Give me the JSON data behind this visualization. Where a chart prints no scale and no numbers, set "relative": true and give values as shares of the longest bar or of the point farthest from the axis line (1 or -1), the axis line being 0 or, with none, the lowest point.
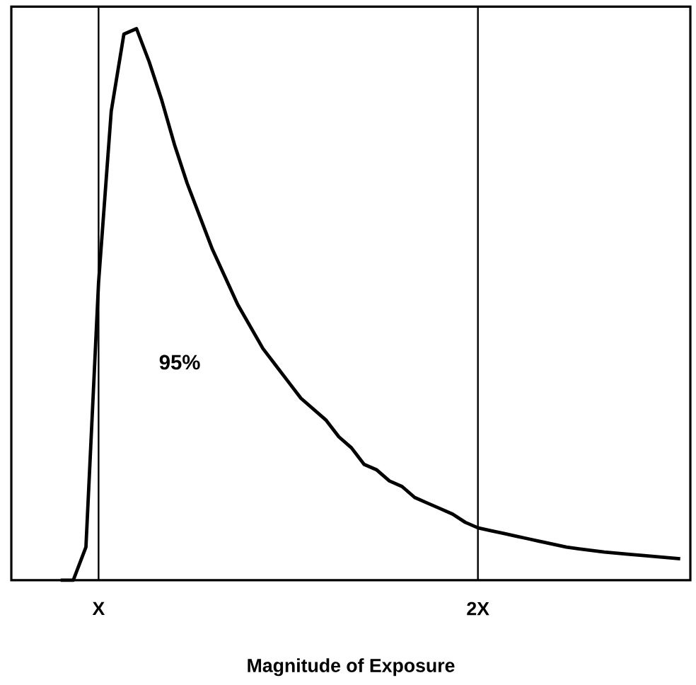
{
  "chart_data": {
    "type": "line",
    "relative": true,
    "xlabel": "Magnitude of Exposure",
    "categories": [
      null,
      null,
      null,
      "X",
      null,
      null,
      null,
      null,
      null,
      null,
      null,
      null,
      null,
      null,
      null,
      null,
      null,
      null,
      null,
      null,
      null,
      null,
      null,
      null,
      null,
      null,
      null,
      null,
      null,
      null,
      null,
      null,
      null,
      "2X",
      null,
      null,
      null,
      null,
      null,
      null,
      null,
      null,
      null,
      null,
      null,
      null,
      null,
      null,
      null,
      null
    ],
    "series": [
      {
        "color": "#000000",
        "values": [
          0,
          0,
          0.06,
          0.54,
          0.85,
          0.99,
          1,
          0.94,
          0.87,
          0.79,
          0.72,
          0.66,
          0.6,
          0.55,
          0.5,
          0.46,
          0.42,
          0.39,
          0.36,
          0.33,
          0.31,
          0.29,
          0.26,
          0.24,
          0.21,
          0.2,
          0.18,
          0.17,
          0.15,
          0.14,
          0.13,
          0.12,
          0.105,
          0.095,
          0.09,
          0.085,
          0.08,
          0.075,
          0.07,
          0.065,
          0.06,
          0.057,
          0.054,
          0.051,
          0.049,
          0.047,
          0.045,
          0.043,
          0.041,
          0.039
        ]
      }
    ],
    "ref_lines": [
      {
        "axis": "x",
        "value": "X",
        "color": "#000000"
      },
      {
        "axis": "x",
        "value": "2X",
        "color": "#000000"
      }
    ],
    "annotations": [
      "95%"
    ]
  }
}
